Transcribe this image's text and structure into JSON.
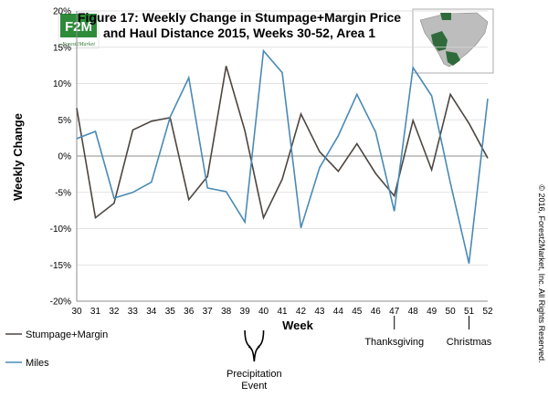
{
  "colors": {
    "stumpage": "#4d4540",
    "miles": "#4a8ab5",
    "grid": "#d9d9d9",
    "logo_green": "#2e8b3a",
    "map_fill": "#bdbdbd",
    "map_highlight": "#2f6b3a"
  },
  "logo": {
    "main_text": "F2M",
    "sub_text": "Forest2Market"
  },
  "copyright": "© 2016, Forest2Market, Inc. All Rights Reserved.",
  "chart_data": {
    "type": "line",
    "title": "Figure 17: Weekly Change in Stumpage+Margin Price and Haul Distance 2015, Weeks 30-52, Area 1",
    "title_lines": [
      "Figure 17: Weekly Change in Stumpage+Margin Price",
      "and Haul Distance 2015, Weeks 30-52, Area 1"
    ],
    "xlabel": "Week",
    "ylabel": "Weekly Change",
    "x": [
      "30",
      "31",
      "32",
      "33",
      "34",
      "35",
      "36",
      "37",
      "38",
      "39",
      "40",
      "41",
      "42",
      "43",
      "44",
      "45",
      "46",
      "47",
      "48",
      "49",
      "50",
      "51",
      "52"
    ],
    "ylim": [
      -20,
      20
    ],
    "yticks": [
      -20,
      -15,
      -10,
      -5,
      0,
      5,
      10,
      15,
      20
    ],
    "ytick_labels": [
      "-20%",
      "-15%",
      "-10%",
      "-5%",
      "0%",
      "5%",
      "10%",
      "15%",
      "20%"
    ],
    "grid": true,
    "legend_placement": "bottom-left",
    "series": [
      {
        "name": "Stumpage+Margin",
        "color": "#4d4540",
        "values": [
          6.6,
          -8.5,
          -6.5,
          3.6,
          4.8,
          5.3,
          -6.0,
          -2.8,
          12.4,
          3.5,
          -8.5,
          -3.2,
          5.8,
          0.6,
          -2.1,
          1.7,
          -2.4,
          -5.5,
          4.9,
          -1.9,
          8.5,
          4.5,
          -0.3
        ]
      },
      {
        "name": "Miles",
        "color": "#4a8ab5",
        "values": [
          2.4,
          3.4,
          -5.8,
          -5.0,
          -3.6,
          5.4,
          10.8,
          -4.4,
          -4.9,
          -9.1,
          14.5,
          11.5,
          -9.9,
          -1.6,
          2.8,
          8.5,
          3.3,
          -7.6,
          12.2,
          8.3,
          -3.7,
          -14.8,
          7.9
        ]
      }
    ],
    "annotations": [
      {
        "label_lines": [
          "Precipitation",
          "Event"
        ],
        "x_from": "39",
        "x_to": "40",
        "style": "brace"
      },
      {
        "label_lines": [
          "Thanksgiving"
        ],
        "x": "47",
        "style": "tick"
      },
      {
        "label_lines": [
          "Christmas"
        ],
        "x": "51",
        "style": "tick"
      }
    ]
  }
}
